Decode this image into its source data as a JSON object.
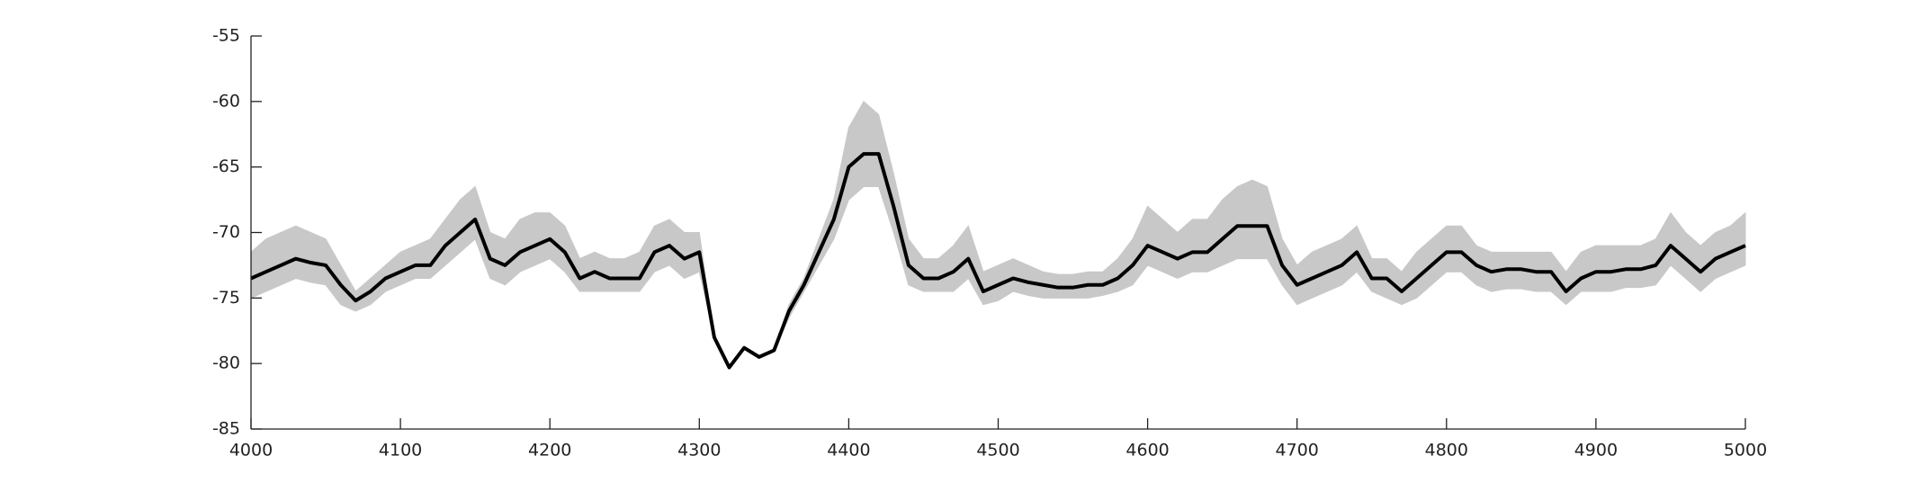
{
  "chart_data": {
    "type": "line",
    "x": [
      4000,
      4010,
      4020,
      4030,
      4040,
      4050,
      4060,
      4070,
      4080,
      4090,
      4100,
      4110,
      4120,
      4130,
      4140,
      4150,
      4160,
      4170,
      4180,
      4190,
      4200,
      4210,
      4220,
      4230,
      4240,
      4250,
      4260,
      4270,
      4280,
      4290,
      4300,
      4310,
      4320,
      4330,
      4340,
      4350,
      4360,
      4370,
      4380,
      4390,
      4400,
      4410,
      4420,
      4430,
      4440,
      4450,
      4460,
      4470,
      4480,
      4490,
      4500,
      4510,
      4520,
      4530,
      4540,
      4550,
      4560,
      4570,
      4580,
      4590,
      4600,
      4610,
      4620,
      4630,
      4640,
      4650,
      4660,
      4670,
      4680,
      4690,
      4700,
      4710,
      4720,
      4730,
      4740,
      4750,
      4760,
      4770,
      4780,
      4790,
      4800,
      4810,
      4820,
      4830,
      4840,
      4850,
      4860,
      4870,
      4880,
      4890,
      4900,
      4910,
      4920,
      4930,
      4940,
      4950,
      4960,
      4970,
      4980,
      4990,
      5000
    ],
    "series": [
      {
        "color": "#c8c8c8",
        "upper": [
          -71.5,
          -70.5,
          -70,
          -69.5,
          -70,
          -70.5,
          -72.5,
          -74.5,
          -73.5,
          -72.5,
          -71.5,
          -71,
          -70.5,
          -69,
          -67.5,
          -66.5,
          -70,
          -70.5,
          -69,
          -68.5,
          -68.5,
          -69.5,
          -72,
          -71.5,
          -72,
          -72,
          -71.5,
          -69.5,
          -69,
          -70,
          -70,
          -78,
          -80.3,
          -78.8,
          -79.5,
          -79,
          -75.5,
          -73.5,
          -70.5,
          -67.5,
          -62,
          -60,
          -61,
          -65.5,
          -70.5,
          -72,
          -72,
          -71,
          -69.5,
          -73,
          -72.5,
          -72,
          -72.5,
          -73,
          -73.2,
          -73.2,
          -73,
          -73,
          -72,
          -70.5,
          -68,
          -69,
          -70,
          -69,
          -69,
          -67.5,
          -66.5,
          -66,
          -66.5,
          -70.5,
          -72.5,
          -71.5,
          -71,
          -70.5,
          -69.5,
          -72,
          -72,
          -73,
          -71.5,
          -70.5,
          -69.5,
          -69.5,
          -71,
          -71.5,
          -71.5,
          -71.5,
          -71.5,
          -71.5,
          -73,
          -71.5,
          -71,
          -71,
          -71,
          -71,
          -70.5,
          -68.5,
          -70,
          -71,
          -70,
          -69.5,
          -68.5
        ],
        "lower": [
          -75,
          -74.5,
          -74,
          -73.5,
          -73.8,
          -74,
          -75.5,
          -76,
          -75.5,
          -74.5,
          -74,
          -73.5,
          -73.5,
          -72.5,
          -71.5,
          -70.5,
          -73.5,
          -74,
          -73,
          -72.5,
          -72,
          -73,
          -74.5,
          -74.5,
          -74.5,
          -74.5,
          -74.5,
          -73,
          -72.5,
          -73.5,
          -73,
          -78,
          -80.3,
          -78.8,
          -79.5,
          -79,
          -76.5,
          -74.5,
          -72.5,
          -70.5,
          -67.5,
          -66.5,
          -66.5,
          -70,
          -74,
          -74.5,
          -74.5,
          -74.5,
          -73.5,
          -75.5,
          -75.2,
          -74.5,
          -74.8,
          -75,
          -75,
          -75,
          -75,
          -74.8,
          -74.5,
          -74,
          -72.5,
          -73,
          -73.5,
          -73,
          -73,
          -72.5,
          -72,
          -72,
          -72,
          -74,
          -75.5,
          -75,
          -74.5,
          -74,
          -73,
          -74.5,
          -75,
          -75.5,
          -75,
          -74,
          -73,
          -73,
          -74,
          -74.5,
          -74.3,
          -74.3,
          -74.5,
          -74.5,
          -75.5,
          -74.5,
          -74.5,
          -74.5,
          -74.2,
          -74.2,
          -74,
          -72.5,
          -73.5,
          -74.5,
          -73.5,
          -73,
          -72.5
        ]
      },
      {
        "color": "#000000",
        "values": [
          -73.5,
          -73,
          -72.5,
          -72,
          -72.3,
          -72.5,
          -74,
          -75.2,
          -74.5,
          -73.5,
          -73,
          -72.5,
          -72.5,
          -71,
          -70,
          -69,
          -72,
          -72.5,
          -71.5,
          -71,
          -70.5,
          -71.5,
          -73.5,
          -73,
          -73.5,
          -73.5,
          -73.5,
          -71.5,
          -71,
          -72,
          -71.5,
          -78,
          -80.3,
          -78.8,
          -79.5,
          -79,
          -76,
          -74,
          -71.5,
          -69,
          -65,
          -64,
          -64,
          -68,
          -72.5,
          -73.5,
          -73.5,
          -73,
          -72,
          -74.5,
          -74,
          -73.5,
          -73.8,
          -74,
          -74.2,
          -74.2,
          -74,
          -74,
          -73.5,
          -72.5,
          -71,
          -71.5,
          -72,
          -71.5,
          -71.5,
          -70.5,
          -69.5,
          -69.5,
          -69.5,
          -72.5,
          -74,
          -73.5,
          -73,
          -72.5,
          -71.5,
          -73.5,
          -73.5,
          -74.5,
          -73.5,
          -72.5,
          -71.5,
          -71.5,
          -72.5,
          -73,
          -72.8,
          -72.8,
          -73,
          -73,
          -74.5,
          -73.5,
          -73,
          -73,
          -72.8,
          -72.8,
          -72.5,
          -71,
          -72,
          -73,
          -72,
          -71.5,
          -71
        ]
      }
    ],
    "xlim": [
      4000,
      5000
    ],
    "xticks": [
      4000,
      4100,
      4200,
      4300,
      4400,
      4500,
      4600,
      4700,
      4800,
      4900,
      5000
    ],
    "ylim": [
      -85,
      -55
    ],
    "yticks": [
      -85,
      -80,
      -75,
      -70,
      -65,
      -60,
      -55
    ]
  }
}
